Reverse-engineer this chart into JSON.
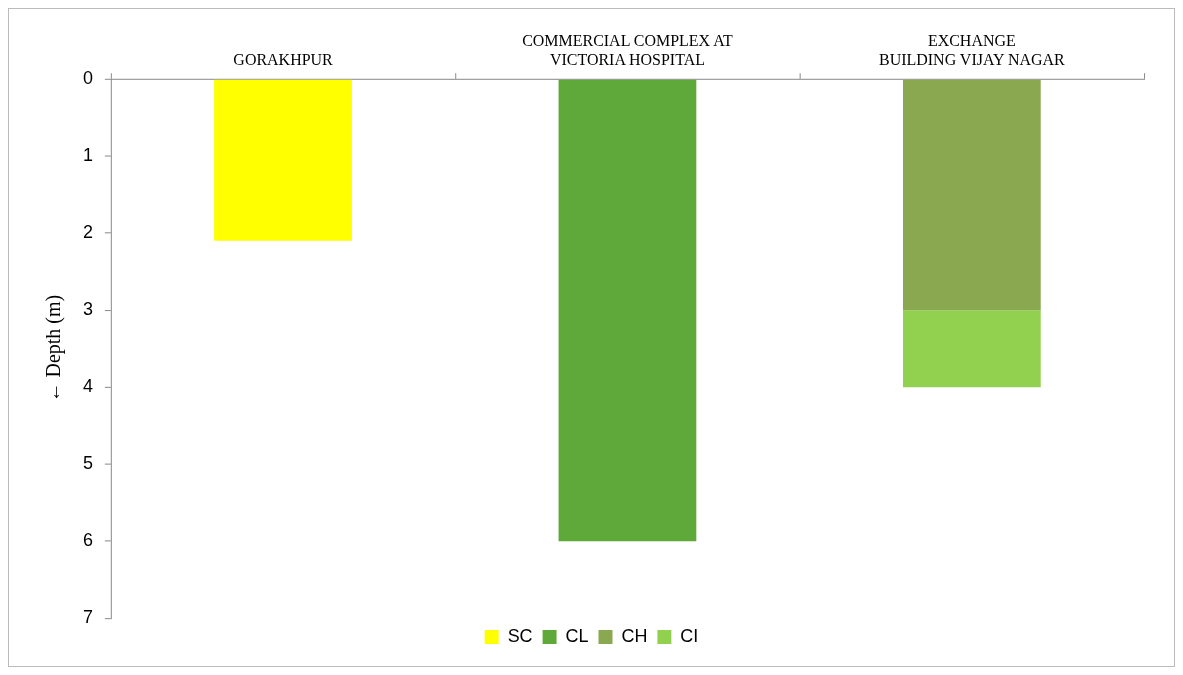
{
  "chart_data": {
    "type": "bar",
    "stacked": true,
    "ylabel": "← Depth (m)",
    "categories": [
      "GORAKHPUR",
      "COMMERCIAL COMPLEX AT\nVICTORIA HOSPITAL",
      "EXCHANGE\nBUILDING VIJAY NAGAR"
    ],
    "series": [
      {
        "name": "SC",
        "color": "#ffff00",
        "values": [
          2.1,
          null,
          null
        ]
      },
      {
        "name": "CL",
        "color": "#5fa83a",
        "values": [
          null,
          6,
          null
        ]
      },
      {
        "name": "CH",
        "color": "#8aa84f",
        "values": [
          null,
          null,
          3
        ]
      },
      {
        "name": "CI",
        "color": "#92d050",
        "values": [
          null,
          null,
          1
        ]
      }
    ],
    "ylim": [
      7,
      0
    ],
    "yticks": [
      0,
      1,
      2,
      3,
      4,
      5,
      6,
      7
    ],
    "grid": false,
    "legend": "bottom"
  }
}
